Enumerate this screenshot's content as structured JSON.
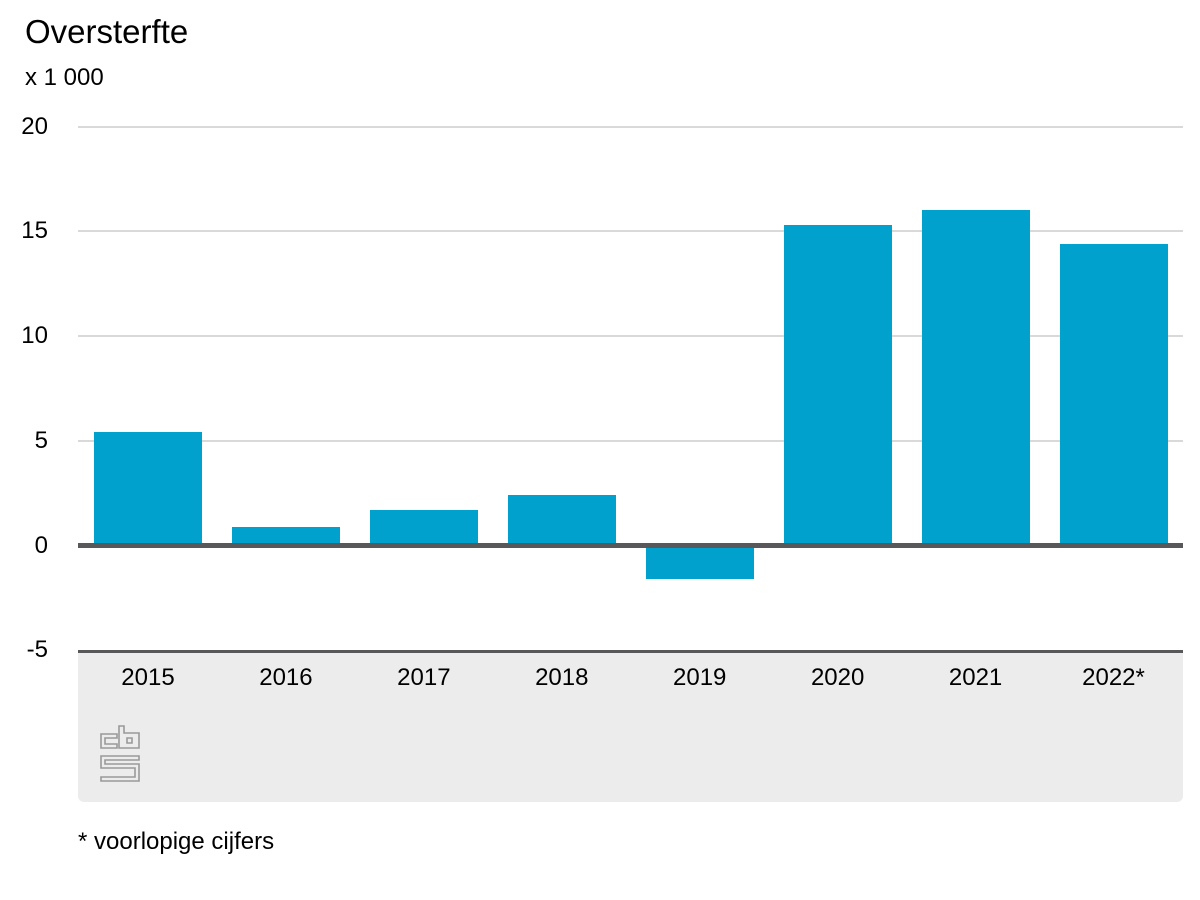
{
  "chart_data": {
    "type": "bar",
    "title": "Oversterfte",
    "unit_label": "x 1 000",
    "categories": [
      "2015",
      "2016",
      "2017",
      "2018",
      "2019",
      "2020",
      "2021",
      "2022*"
    ],
    "values": [
      5.4,
      0.9,
      1.7,
      2.4,
      -1.6,
      15.3,
      16.0,
      14.4
    ],
    "xlabel": "",
    "ylabel": "x 1 000",
    "ylim": [
      -5,
      20
    ],
    "yticks": [
      20,
      15,
      10,
      5,
      0,
      -5
    ],
    "grid": true,
    "legend_position": "none",
    "bar_color": "#00a1cd",
    "gridline_color": "#d9d9d9",
    "axis_line_color": "#58585b",
    "band_color": "#ececec"
  },
  "footnote": "* voorlopige cijfers",
  "logo": {
    "name": "cbs-logo",
    "color": "#999999"
  }
}
